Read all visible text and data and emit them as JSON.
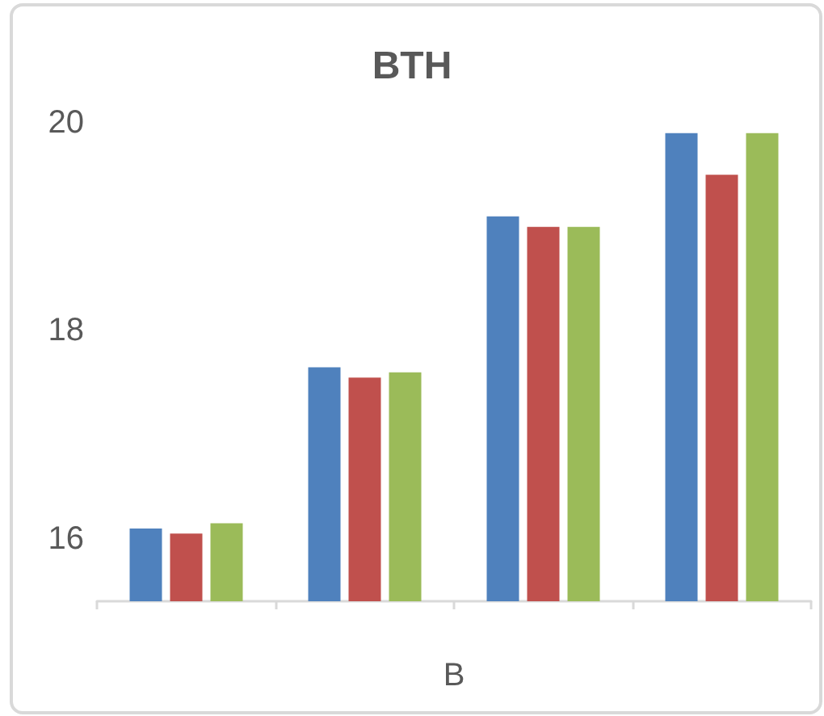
{
  "chart_data": {
    "type": "bar",
    "title": "BTH",
    "xlabel": "B",
    "categories": [
      null,
      null,
      null,
      null
    ],
    "series": [
      {
        "color": "#4f81bd",
        "values": [
          16.1,
          17.65,
          19.1,
          19.9
        ]
      },
      {
        "color": "#c0504d",
        "values": [
          16.05,
          17.55,
          19.0,
          19.5
        ]
      },
      {
        "color": "#9bbb59",
        "values": [
          16.15,
          17.6,
          19.0,
          19.9
        ]
      }
    ],
    "ylim": [
      15.4,
      20
    ],
    "yticks": [
      16,
      18,
      20
    ]
  }
}
